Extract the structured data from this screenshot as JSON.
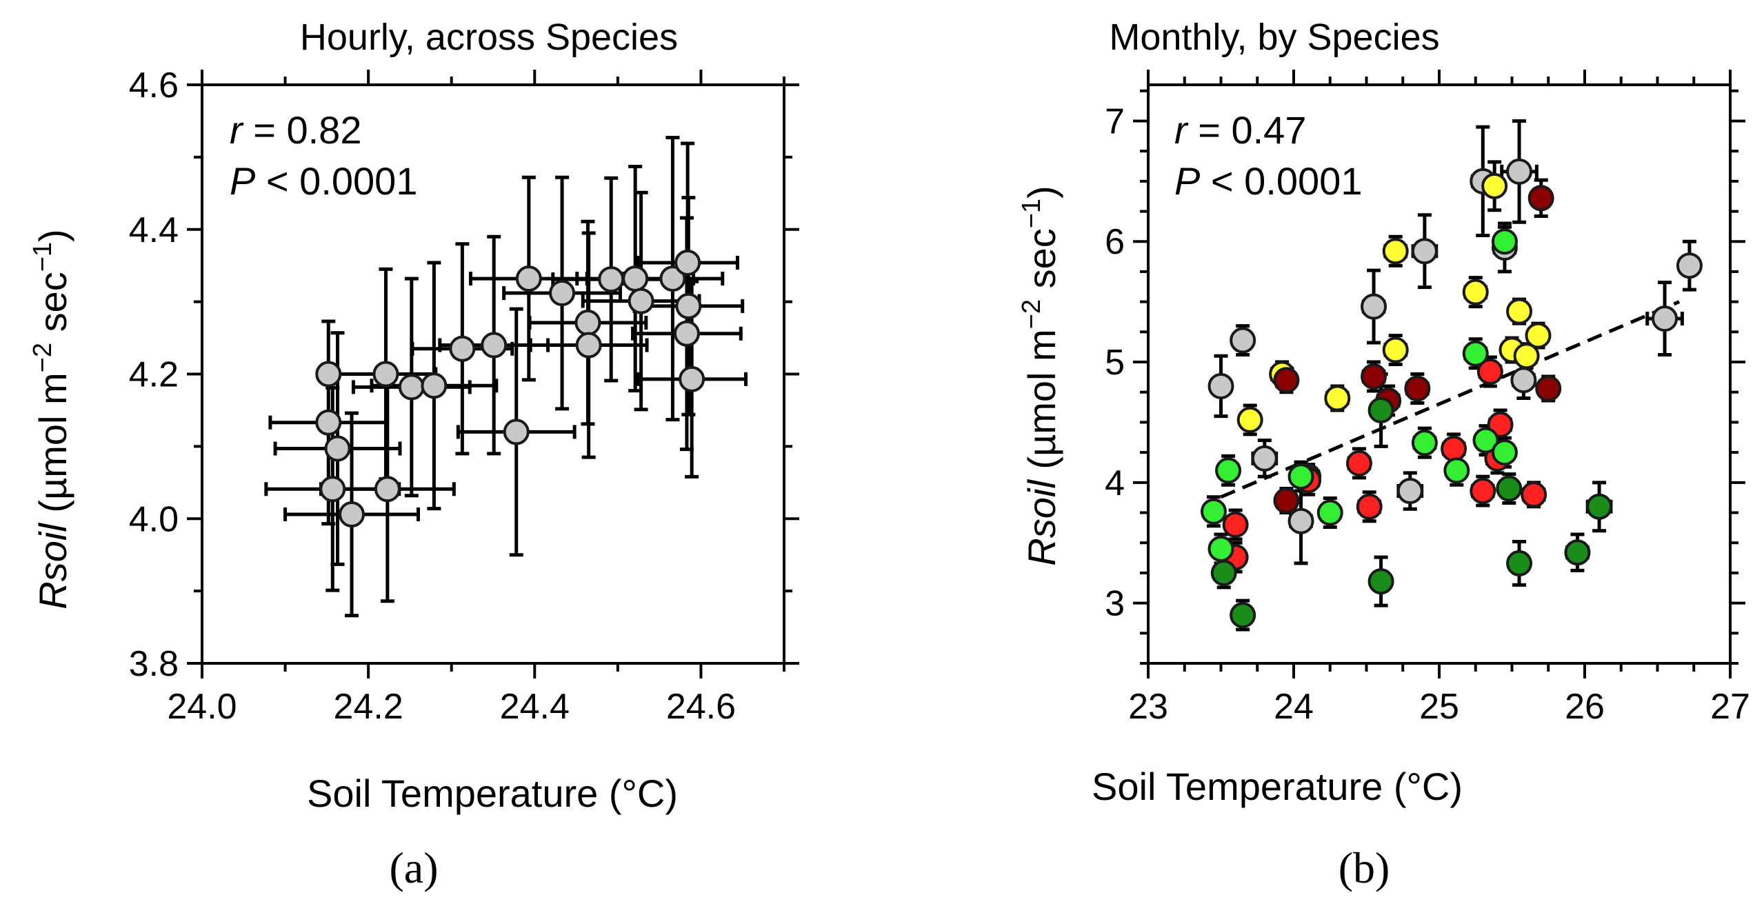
{
  "chart_data": [
    {
      "type": "scatter",
      "panel_label": "(a)",
      "title": "Hourly, across Species",
      "xlabel": "Soil Temperature (°C)",
      "ylabel": {
        "italic": "Rsoil",
        "rest": " (µmol m",
        "sup1": "−2",
        "mid": " sec",
        "sup2": "−1",
        "end": ")"
      },
      "xlim": [
        24.0,
        24.7
      ],
      "ylim": [
        3.8,
        4.6
      ],
      "xticks": [
        {
          "v": 24.0,
          "label": "24.0"
        },
        {
          "v": 24.2,
          "label": "24.2"
        },
        {
          "v": 24.4,
          "label": "24.4"
        },
        {
          "v": 24.6,
          "label": "24.6"
        }
      ],
      "xminor": [
        24.1,
        24.3,
        24.5,
        24.7
      ],
      "yticks": [
        {
          "v": 3.8,
          "label": "3.8"
        },
        {
          "v": 4.0,
          "label": "4.0"
        },
        {
          "v": 4.2,
          "label": "4.2"
        },
        {
          "v": 4.4,
          "label": "4.4"
        },
        {
          "v": 4.6,
          "label": "4.6"
        }
      ],
      "yminor": [
        3.9,
        4.1,
        4.3,
        4.5
      ],
      "grid": false,
      "stats": {
        "r_label": "r",
        "r_value": " = 0.82",
        "p_label": "P",
        "p_value": " < 0.0001"
      },
      "points": [
        {
          "x": 24.152,
          "y": 4.133,
          "xerr": 0.07,
          "yerr": 0.14,
          "color": "#c8c8c8"
        },
        {
          "x": 24.163,
          "y": 4.097,
          "xerr": 0.075,
          "yerr": 0.16,
          "color": "#c8c8c8"
        },
        {
          "x": 24.157,
          "y": 4.041,
          "xerr": 0.08,
          "yerr": 0.14,
          "color": "#c8c8c8"
        },
        {
          "x": 24.18,
          "y": 4.006,
          "xerr": 0.08,
          "yerr": 0.14,
          "color": "#c8c8c8"
        },
        {
          "x": 24.152,
          "y": 4.2,
          "xerr": 0.0,
          "yerr": 0.0,
          "color": "#c8c8c8"
        },
        {
          "x": 24.221,
          "y": 4.2,
          "xerr": 0.06,
          "yerr": 0.145,
          "color": "#c8c8c8"
        },
        {
          "x": 24.223,
          "y": 4.041,
          "xerr": 0.08,
          "yerr": 0.155,
          "color": "#c8c8c8"
        },
        {
          "x": 24.252,
          "y": 4.182,
          "xerr": 0.07,
          "yerr": 0.15,
          "color": "#c8c8c8"
        },
        {
          "x": 24.279,
          "y": 4.184,
          "xerr": 0.075,
          "yerr": 0.17,
          "color": "#c8c8c8"
        },
        {
          "x": 24.313,
          "y": 4.235,
          "xerr": 0.06,
          "yerr": 0.145,
          "color": "#c8c8c8"
        },
        {
          "x": 24.351,
          "y": 4.24,
          "xerr": 0.065,
          "yerr": 0.15,
          "color": "#c8c8c8"
        },
        {
          "x": 24.378,
          "y": 4.12,
          "xerr": 0.07,
          "yerr": 0.17,
          "color": "#c8c8c8"
        },
        {
          "x": 24.393,
          "y": 4.332,
          "xerr": 0.07,
          "yerr": 0.14,
          "color": "#c8c8c8"
        },
        {
          "x": 24.433,
          "y": 4.312,
          "xerr": 0.07,
          "yerr": 0.16,
          "color": "#c8c8c8"
        },
        {
          "x": 24.464,
          "y": 4.271,
          "xerr": 0.07,
          "yerr": 0.14,
          "color": "#c8c8c8"
        },
        {
          "x": 24.465,
          "y": 4.24,
          "xerr": 0.07,
          "yerr": 0.155,
          "color": "#c8c8c8"
        },
        {
          "x": 24.492,
          "y": 4.331,
          "xerr": 0.07,
          "yerr": 0.14,
          "color": "#c8c8c8"
        },
        {
          "x": 24.521,
          "y": 4.332,
          "xerr": 0.07,
          "yerr": 0.155,
          "color": "#c8c8c8"
        },
        {
          "x": 24.528,
          "y": 4.301,
          "xerr": 0.07,
          "yerr": 0.15,
          "color": "#c8c8c8"
        },
        {
          "x": 24.566,
          "y": 4.332,
          "xerr": 0.06,
          "yerr": 0.195,
          "color": "#c8c8c8"
        },
        {
          "x": 24.584,
          "y": 4.354,
          "xerr": 0.06,
          "yerr": 0.165,
          "color": "#c8c8c8"
        },
        {
          "x": 24.585,
          "y": 4.294,
          "xerr": 0.065,
          "yerr": 0.15,
          "color": "#c8c8c8"
        },
        {
          "x": 24.583,
          "y": 4.256,
          "xerr": 0.065,
          "yerr": 0.16,
          "color": "#c8c8c8"
        },
        {
          "x": 24.589,
          "y": 4.193,
          "xerr": 0.065,
          "yerr": 0.135,
          "color": "#c8c8c8"
        }
      ]
    },
    {
      "type": "scatter",
      "panel_label": "(b)",
      "title": "Monthly, by Species",
      "xlabel": "Soil Temperature (°C)",
      "ylabel": {
        "italic": "Rsoil",
        "rest": " (µmol m",
        "sup1": "−2",
        "mid": " sec",
        "sup2": "−1",
        "end": ")"
      },
      "xlim": [
        23,
        27
      ],
      "ylim": [
        2.5,
        7.3
      ],
      "xticks": [
        {
          "v": 23,
          "label": "23"
        },
        {
          "v": 24,
          "label": "24"
        },
        {
          "v": 25,
          "label": "25"
        },
        {
          "v": 26,
          "label": "26"
        },
        {
          "v": 27,
          "label": "27"
        }
      ],
      "xminor": [
        23.25,
        23.5,
        23.75,
        24.25,
        24.5,
        24.75,
        25.25,
        25.5,
        25.75,
        26.25,
        26.5,
        26.75
      ],
      "yticks": [
        {
          "v": 3,
          "label": "3"
        },
        {
          "v": 4,
          "label": "4"
        },
        {
          "v": 5,
          "label": "5"
        },
        {
          "v": 6,
          "label": "6"
        },
        {
          "v": 7,
          "label": "7"
        }
      ],
      "yminor": [
        2.5,
        2.75,
        3.25,
        3.5,
        3.75,
        4.25,
        4.5,
        4.75,
        5.25,
        5.5,
        5.75,
        6.25,
        6.5,
        6.75,
        7.25
      ],
      "grid": false,
      "stats": {
        "r_label": "r",
        "r_value": " = 0.47",
        "p_label": "P",
        "p_value": " < 0.0001"
      },
      "trendline": {
        "x": [
          23.5,
          26.65
        ],
        "y": [
          3.88,
          5.5
        ],
        "style": "dashed"
      },
      "points": [
        {
          "x": 23.5,
          "y": 4.8,
          "xerr": 0.06,
          "yerr": 0.25,
          "color": "#c8c8c8"
        },
        {
          "x": 23.65,
          "y": 5.18,
          "xerr": 0.05,
          "yerr": 0.12,
          "color": "#c8c8c8"
        },
        {
          "x": 23.8,
          "y": 4.2,
          "xerr": 0.08,
          "yerr": 0.15,
          "color": "#c8c8c8"
        },
        {
          "x": 24.05,
          "y": 3.68,
          "xerr": 0.07,
          "yerr": 0.35,
          "color": "#c8c8c8"
        },
        {
          "x": 24.55,
          "y": 5.46,
          "xerr": 0.07,
          "yerr": 0.3,
          "color": "#c8c8c8"
        },
        {
          "x": 24.8,
          "y": 3.93,
          "xerr": 0.08,
          "yerr": 0.15,
          "color": "#c8c8c8"
        },
        {
          "x": 24.9,
          "y": 5.92,
          "xerr": 0.08,
          "yerr": 0.3,
          "color": "#c8c8c8"
        },
        {
          "x": 25.3,
          "y": 6.5,
          "xerr": 0.07,
          "yerr": 0.45,
          "color": "#c8c8c8"
        },
        {
          "x": 25.45,
          "y": 5.95,
          "xerr": 0.07,
          "yerr": 0.2,
          "color": "#c8c8c8"
        },
        {
          "x": 25.55,
          "y": 6.58,
          "xerr": 0.12,
          "yerr": 0.42,
          "color": "#c8c8c8"
        },
        {
          "x": 25.58,
          "y": 4.85,
          "xerr": 0.07,
          "yerr": 0.15,
          "color": "#c8c8c8"
        },
        {
          "x": 26.55,
          "y": 5.36,
          "xerr": 0.12,
          "yerr": 0.3,
          "color": "#c8c8c8"
        },
        {
          "x": 26.72,
          "y": 5.8,
          "xerr": 0.06,
          "yerr": 0.2,
          "color": "#c8c8c8"
        },
        {
          "x": 23.7,
          "y": 4.52,
          "xerr": 0.06,
          "yerr": 0.12,
          "color": "#ffff33"
        },
        {
          "x": 23.92,
          "y": 4.9,
          "xerr": 0.07,
          "yerr": 0.1,
          "color": "#ffff33"
        },
        {
          "x": 24.3,
          "y": 4.7,
          "xerr": 0.07,
          "yerr": 0.1,
          "color": "#ffff33"
        },
        {
          "x": 24.7,
          "y": 5.92,
          "xerr": 0.07,
          "yerr": 0.12,
          "color": "#ffff33"
        },
        {
          "x": 24.7,
          "y": 5.1,
          "xerr": 0.07,
          "yerr": 0.12,
          "color": "#ffff33"
        },
        {
          "x": 25.25,
          "y": 5.58,
          "xerr": 0.07,
          "yerr": 0.12,
          "color": "#ffff33"
        },
        {
          "x": 25.38,
          "y": 6.46,
          "xerr": 0.06,
          "yerr": 0.2,
          "color": "#ffff33"
        },
        {
          "x": 25.5,
          "y": 5.1,
          "xerr": 0.06,
          "yerr": 0.1,
          "color": "#ffff33"
        },
        {
          "x": 25.55,
          "y": 5.42,
          "xerr": 0.06,
          "yerr": 0.1,
          "color": "#ffff33"
        },
        {
          "x": 25.6,
          "y": 5.05,
          "xerr": 0.06,
          "yerr": 0.1,
          "color": "#ffff33"
        },
        {
          "x": 25.68,
          "y": 5.22,
          "xerr": 0.06,
          "yerr": 0.1,
          "color": "#ffff33"
        },
        {
          "x": 23.95,
          "y": 4.85,
          "xerr": 0.06,
          "yerr": 0.1,
          "color": "#8b0000"
        },
        {
          "x": 23.95,
          "y": 3.85,
          "xerr": 0.06,
          "yerr": 0.1,
          "color": "#8b0000"
        },
        {
          "x": 24.1,
          "y": 4.05,
          "xerr": 0.07,
          "yerr": 0.1,
          "color": "#8b0000"
        },
        {
          "x": 24.55,
          "y": 4.88,
          "xerr": 0.07,
          "yerr": 0.12,
          "color": "#8b0000"
        },
        {
          "x": 24.65,
          "y": 4.68,
          "xerr": 0.07,
          "yerr": 0.12,
          "color": "#8b0000"
        },
        {
          "x": 24.85,
          "y": 4.78,
          "xerr": 0.07,
          "yerr": 0.12,
          "color": "#8b0000"
        },
        {
          "x": 25.7,
          "y": 6.36,
          "xerr": 0.06,
          "yerr": 0.15,
          "color": "#8b0000"
        },
        {
          "x": 25.75,
          "y": 4.78,
          "xerr": 0.06,
          "yerr": 0.1,
          "color": "#8b0000"
        },
        {
          "x": 23.6,
          "y": 3.65,
          "xerr": 0.05,
          "yerr": 0.12,
          "color": "#ff2020"
        },
        {
          "x": 23.6,
          "y": 3.38,
          "xerr": 0.05,
          "yerr": 0.12,
          "color": "#ff2020"
        },
        {
          "x": 24.1,
          "y": 4.02,
          "xerr": 0.07,
          "yerr": 0.12,
          "color": "#ff2020"
        },
        {
          "x": 24.45,
          "y": 4.16,
          "xerr": 0.07,
          "yerr": 0.12,
          "color": "#ff2020"
        },
        {
          "x": 24.52,
          "y": 3.8,
          "xerr": 0.07,
          "yerr": 0.12,
          "color": "#ff2020"
        },
        {
          "x": 25.1,
          "y": 4.28,
          "xerr": 0.07,
          "yerr": 0.12,
          "color": "#ff2020"
        },
        {
          "x": 25.3,
          "y": 3.93,
          "xerr": 0.07,
          "yerr": 0.12,
          "color": "#ff2020"
        },
        {
          "x": 25.35,
          "y": 4.92,
          "xerr": 0.07,
          "yerr": 0.12,
          "color": "#ff2020"
        },
        {
          "x": 25.4,
          "y": 4.2,
          "xerr": 0.07,
          "yerr": 0.12,
          "color": "#ff2020"
        },
        {
          "x": 25.42,
          "y": 4.48,
          "xerr": 0.07,
          "yerr": 0.12,
          "color": "#ff2020"
        },
        {
          "x": 25.65,
          "y": 3.9,
          "xerr": 0.07,
          "yerr": 0.1,
          "color": "#ff2020"
        },
        {
          "x": 23.45,
          "y": 3.76,
          "xerr": 0.05,
          "yerr": 0.12,
          "color": "#33ee33"
        },
        {
          "x": 23.5,
          "y": 3.45,
          "xerr": 0.05,
          "yerr": 0.12,
          "color": "#33ee33"
        },
        {
          "x": 23.55,
          "y": 4.1,
          "xerr": 0.05,
          "yerr": 0.12,
          "color": "#33ee33"
        },
        {
          "x": 24.05,
          "y": 4.05,
          "xerr": 0.06,
          "yerr": 0.12,
          "color": "#33ee33"
        },
        {
          "x": 24.25,
          "y": 3.75,
          "xerr": 0.06,
          "yerr": 0.12,
          "color": "#33ee33"
        },
        {
          "x": 24.9,
          "y": 4.33,
          "xerr": 0.07,
          "yerr": 0.12,
          "color": "#33ee33"
        },
        {
          "x": 25.12,
          "y": 4.1,
          "xerr": 0.06,
          "yerr": 0.12,
          "color": "#33ee33"
        },
        {
          "x": 25.25,
          "y": 5.07,
          "xerr": 0.07,
          "yerr": 0.12,
          "color": "#33ee33"
        },
        {
          "x": 25.32,
          "y": 4.35,
          "xerr": 0.06,
          "yerr": 0.12,
          "color": "#33ee33"
        },
        {
          "x": 25.45,
          "y": 4.25,
          "xerr": 0.06,
          "yerr": 0.12,
          "color": "#33ee33"
        },
        {
          "x": 25.45,
          "y": 6.0,
          "xerr": 0.06,
          "yerr": 0.12,
          "color": "#33ee33"
        },
        {
          "x": 23.52,
          "y": 3.25,
          "xerr": 0.05,
          "yerr": 0.12,
          "color": "#1a8c1a"
        },
        {
          "x": 23.65,
          "y": 2.9,
          "xerr": 0.05,
          "yerr": 0.12,
          "color": "#1a8c1a"
        },
        {
          "x": 24.6,
          "y": 4.6,
          "xerr": 0.06,
          "yerr": 0.3,
          "color": "#1a8c1a"
        },
        {
          "x": 24.6,
          "y": 3.18,
          "xerr": 0.06,
          "yerr": 0.2,
          "color": "#1a8c1a"
        },
        {
          "x": 25.48,
          "y": 3.95,
          "xerr": 0.06,
          "yerr": 0.12,
          "color": "#1a8c1a"
        },
        {
          "x": 25.55,
          "y": 3.33,
          "xerr": 0.06,
          "yerr": 0.18,
          "color": "#1a8c1a"
        },
        {
          "x": 25.95,
          "y": 3.42,
          "xerr": 0.07,
          "yerr": 0.15,
          "color": "#1a8c1a"
        },
        {
          "x": 26.1,
          "y": 3.8,
          "xerr": 0.08,
          "yerr": 0.2,
          "color": "#1a8c1a"
        }
      ]
    }
  ]
}
